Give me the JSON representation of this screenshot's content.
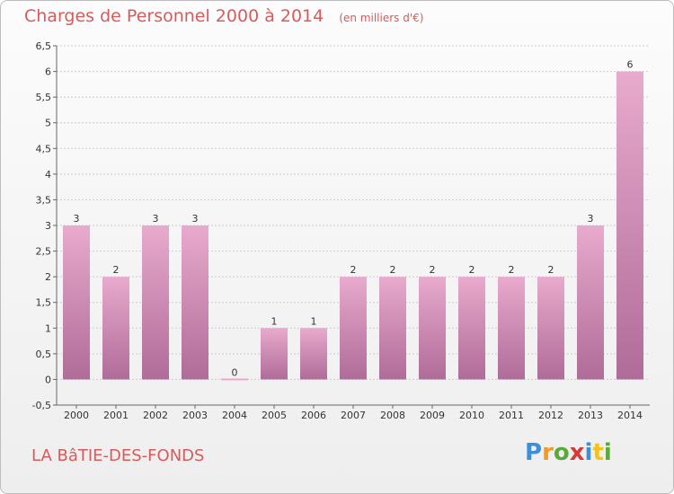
{
  "chart_data": {
    "type": "bar",
    "title": "Charges de Personnel 2000 à 2014",
    "subtitle": "(en milliers d'€)",
    "categories": [
      "2000",
      "2001",
      "2002",
      "2003",
      "2004",
      "2005",
      "2006",
      "2007",
      "2008",
      "2009",
      "2010",
      "2011",
      "2012",
      "2013",
      "2014"
    ],
    "values": [
      3,
      2,
      3,
      3,
      0,
      1,
      1,
      2,
      2,
      2,
      2,
      2,
      2,
      3,
      6
    ],
    "data_labels": [
      "3",
      "2",
      "3",
      "3",
      "0",
      "1",
      "1",
      "2",
      "2",
      "2",
      "2",
      "2",
      "2",
      "3",
      "6"
    ],
    "ylim": [
      -0.5,
      6.5
    ],
    "yticks": [
      "-0,5",
      "0",
      "0,5",
      "1",
      "1,5",
      "2",
      "2,5",
      "3",
      "3,5",
      "4",
      "4,5",
      "5",
      "5,5",
      "6",
      "6,5"
    ],
    "ytick_values": [
      -0.5,
      0,
      0.5,
      1,
      1.5,
      2,
      2.5,
      3,
      3.5,
      4,
      4.5,
      5,
      5.5,
      6,
      6.5
    ],
    "grid": true,
    "colors": {
      "bar_top": "#e8aacd",
      "bar_bottom": "#b06c98",
      "grid": "#cccccc",
      "title": "#d85a5a"
    }
  },
  "footer": {
    "commune": "LA BâTIE-DES-FONDS"
  },
  "logo": {
    "letters": [
      "P",
      "r",
      "o",
      "x",
      "i",
      "t",
      "i"
    ],
    "colors": [
      "#3a8fd8",
      "#f29a1f",
      "#5aaa3a",
      "#d83a3a",
      "#3a8fd8",
      "#f2c21f",
      "#5aaa3a"
    ]
  }
}
